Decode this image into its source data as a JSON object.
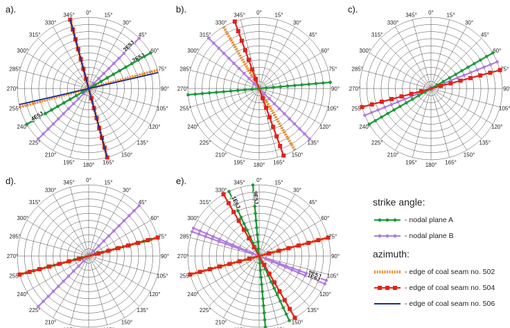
{
  "chart_data": [
    {
      "panel": "a).",
      "type": "polar-rose",
      "series": [
        {
          "legend": "np_a",
          "strike": [
            60,
            240
          ],
          "labels": [
            "2E5J",
            "4E5J"
          ]
        },
        {
          "legend": "np_b",
          "strike": [
            45,
            60
          ],
          "labels": [
            "2E5J",
            "4E5J"
          ]
        },
        {
          "legend": "s502",
          "azimuth": [
            75,
            165
          ]
        },
        {
          "legend": "s504",
          "azimuth": [
            165
          ]
        },
        {
          "legend": "s506",
          "azimuth": [
            77,
            165
          ]
        }
      ]
    },
    {
      "panel": "b).",
      "type": "polar-rose",
      "series": [
        {
          "legend": "np_a",
          "strike": [
            265
          ]
        },
        {
          "legend": "np_b",
          "strike": [
            135
          ]
        },
        {
          "legend": "s502",
          "azimuth": [
            150
          ]
        },
        {
          "legend": "s504",
          "azimuth": [
            160
          ]
        }
      ]
    },
    {
      "panel": "c).",
      "type": "polar-rose",
      "series": [
        {
          "legend": "np_a",
          "strike": [
            240
          ]
        },
        {
          "legend": "np_b",
          "strike": [
            68
          ]
        },
        {
          "legend": "s504",
          "azimuth": [
            75
          ]
        }
      ]
    },
    {
      "panel": "d).",
      "type": "polar-rose",
      "series": [
        {
          "legend": "np_a",
          "strike": [
            255
          ]
        },
        {
          "legend": "np_b",
          "strike": [
            45
          ]
        },
        {
          "legend": "s502",
          "azimuth": [
            75
          ]
        },
        {
          "legend": "s504",
          "azimuth": [
            75
          ]
        }
      ]
    },
    {
      "panel": "e).",
      "type": "polar-rose",
      "series": [
        {
          "legend": "np_a",
          "strike": [
            335,
            355
          ],
          "labels": [
            "1E6J",
            "9E5J"
          ]
        },
        {
          "legend": "np_b",
          "strike": [
            110,
            113
          ],
          "labels": [
            "9E5J",
            "1E6J"
          ]
        },
        {
          "legend": "s502",
          "azimuth": [
            75
          ]
        },
        {
          "legend": "s504",
          "azimuth": [
            75,
            150
          ]
        }
      ]
    }
  ],
  "angle_labels": [
    "0°",
    "15°",
    "30°",
    "45°",
    "60°",
    "75°",
    "90°",
    "105°",
    "120°",
    "135°",
    "150°",
    "165°",
    "180°",
    "195°",
    "210°",
    "225°",
    "240°",
    "255°",
    "270°",
    "285°",
    "300°",
    "315°",
    "330°",
    "345°"
  ],
  "legend": {
    "strike_title": "strike angle:",
    "azimuth_title": "azimuth:",
    "items": [
      {
        "key": "np_a",
        "label": "- nodal plane A",
        "style": "dot",
        "color": "#1e9a3a"
      },
      {
        "key": "np_b",
        "label": "- nodal plane B",
        "style": "dot",
        "color": "#b07de0"
      },
      {
        "key": "s502",
        "label": "- edge of coal seam no. 502",
        "style": "zigzag",
        "color": "#f08a24"
      },
      {
        "key": "s504",
        "label": "- edge of coal seam no. 504",
        "style": "square",
        "color": "#e0231a"
      },
      {
        "key": "s506",
        "label": "- edge of coal seam no. 506",
        "style": "solid",
        "color": "#1a2a9a"
      }
    ]
  }
}
